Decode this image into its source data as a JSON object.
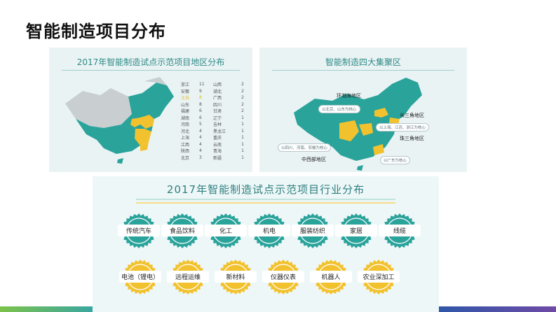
{
  "slide": {
    "title": "智能制造项目分布"
  },
  "left_panel": {
    "title": "2017年智能制造试点示范项目地区分布",
    "rows": [
      {
        "p1": "浙江",
        "n1": "11",
        "p2": "山西",
        "n2": "2"
      },
      {
        "p1": "安徽",
        "n1": "9",
        "p2": "湖北",
        "n2": "2"
      },
      {
        "p1": "江苏",
        "n1": "8",
        "p2": "广西",
        "n2": "2"
      },
      {
        "p1": "山东",
        "n1": "8",
        "p2": "四川",
        "n2": "2"
      },
      {
        "p1": "福建",
        "n1": "6",
        "p2": "甘肃",
        "n2": "2"
      },
      {
        "p1": "湖南",
        "n1": "6",
        "p2": "辽宁",
        "n2": "1"
      },
      {
        "p1": "河南",
        "n1": "5",
        "p2": "吉林",
        "n2": "1"
      },
      {
        "p1": "河北",
        "n1": "4",
        "p2": "黑龙江",
        "n2": "1"
      },
      {
        "p1": "上海",
        "n1": "4",
        "p2": "重庆",
        "n2": "1"
      },
      {
        "p1": "江西",
        "n1": "4",
        "p2": "云南",
        "n2": "1"
      },
      {
        "p1": "陕西",
        "n1": "4",
        "p2": "青海",
        "n2": "1"
      },
      {
        "p1": "北京",
        "n1": "3",
        "p2": "新疆",
        "n2": "1"
      }
    ]
  },
  "right_panel": {
    "title": "智能制造四大集聚区",
    "regions": {
      "bohai": "环渤海地区",
      "yangtze": "长三角地区",
      "pearl": "珠三角地区",
      "central": "中西部地区"
    },
    "notes": {
      "bohai": "以北京、山东为核心",
      "yangtze": "以上海、江苏、浙江为核心",
      "central": "以四川、河南、安徽为核心",
      "pearl": "以广东为核心"
    }
  },
  "bottom_panel": {
    "title": "2017年智能制造试点示范项目行业分布",
    "industries_row1": [
      "传统汽车",
      "食品饮料",
      "化工",
      "机电",
      "服装纺织",
      "家居",
      "线缆"
    ],
    "industries_row2": [
      "电池（锂电）",
      "远程运维",
      "新材料",
      "仪器仪表",
      "机器人",
      "农业深加工"
    ]
  },
  "colors": {
    "map_green": "#2aa39b",
    "map_yellow": "#f2c22e",
    "map_grey": "#c9cfd1",
    "seal_green": "#2aa39b",
    "seal_yellow": "#f2c22e",
    "title_teal": "#2f7f80"
  }
}
